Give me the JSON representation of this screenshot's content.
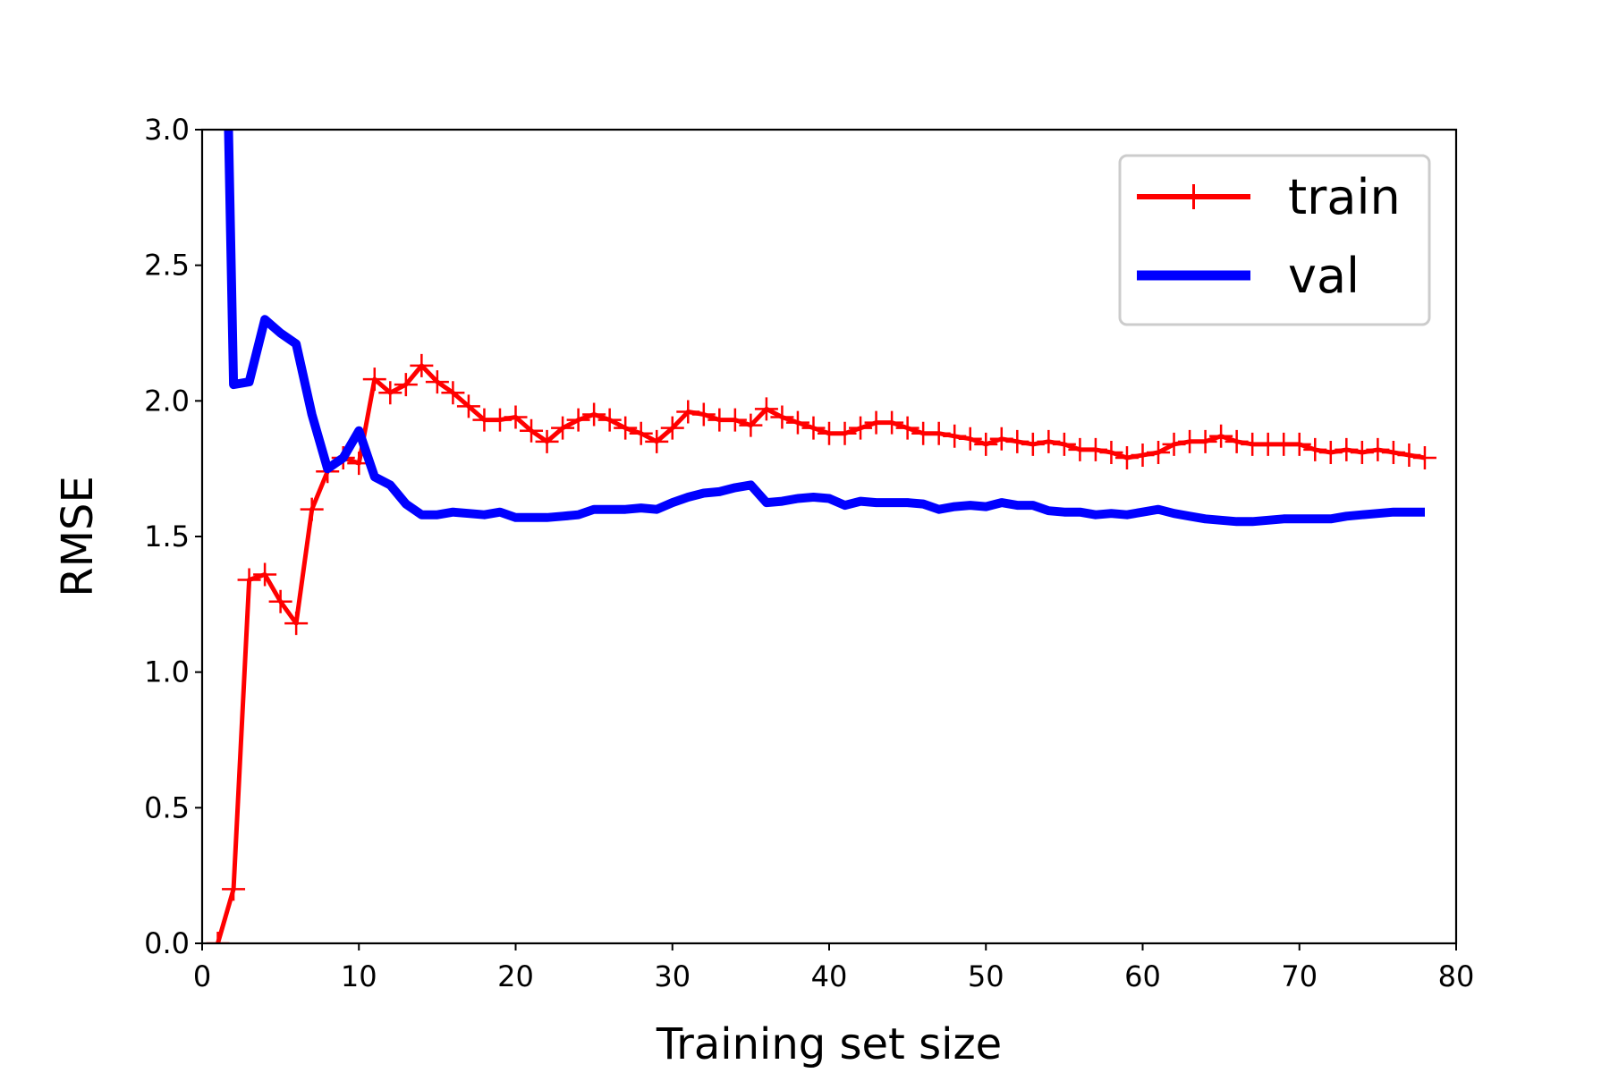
{
  "chart_data": {
    "type": "line",
    "title": "",
    "xlabel": "Training set size",
    "ylabel": "RMSE",
    "xlim": [
      0,
      80
    ],
    "ylim": [
      0,
      3.0
    ],
    "xticks": [
      0,
      10,
      20,
      30,
      40,
      50,
      60,
      70,
      80
    ],
    "yticks": [
      0.0,
      0.5,
      1.0,
      1.5,
      2.0,
      2.5,
      3.0
    ],
    "xtick_labels": [
      "0",
      "10",
      "20",
      "30",
      "40",
      "50",
      "60",
      "70",
      "80"
    ],
    "ytick_labels": [
      "0.0",
      "0.5",
      "1.0",
      "1.5",
      "2.0",
      "2.5",
      "3.0"
    ],
    "grid": false,
    "legend_position": "top-right",
    "x": [
      1,
      2,
      3,
      4,
      5,
      6,
      7,
      8,
      9,
      10,
      11,
      12,
      13,
      14,
      15,
      16,
      17,
      18,
      19,
      20,
      21,
      22,
      23,
      24,
      25,
      26,
      27,
      28,
      29,
      30,
      31,
      32,
      33,
      34,
      35,
      36,
      37,
      38,
      39,
      40,
      41,
      42,
      43,
      44,
      45,
      46,
      47,
      48,
      49,
      50,
      51,
      52,
      53,
      54,
      55,
      56,
      57,
      58,
      59,
      60,
      61,
      62,
      63,
      64,
      65,
      66,
      67,
      68,
      69,
      70,
      71,
      72,
      73,
      74,
      75,
      76,
      77,
      78
    ],
    "series": [
      {
        "name": "train",
        "color": "#ff0000",
        "marker": "+",
        "values": [
          0,
          0.2,
          1.34,
          1.36,
          1.26,
          1.18,
          1.6,
          1.74,
          1.79,
          1.77,
          2.08,
          2.03,
          2.06,
          2.13,
          2.07,
          2.03,
          1.98,
          1.93,
          1.93,
          1.94,
          1.89,
          1.85,
          1.9,
          1.93,
          1.95,
          1.93,
          1.9,
          1.88,
          1.85,
          1.9,
          1.96,
          1.95,
          1.93,
          1.93,
          1.91,
          1.97,
          1.94,
          1.92,
          1.9,
          1.88,
          1.88,
          1.9,
          1.92,
          1.92,
          1.9,
          1.88,
          1.88,
          1.87,
          1.86,
          1.84,
          1.86,
          1.85,
          1.84,
          1.85,
          1.84,
          1.82,
          1.82,
          1.81,
          1.79,
          1.8,
          1.81,
          1.84,
          1.85,
          1.85,
          1.87,
          1.85,
          1.84,
          1.84,
          1.84,
          1.84,
          1.82,
          1.81,
          1.82,
          1.81,
          1.82,
          1.81,
          1.8,
          1.79
        ]
      },
      {
        "name": "val",
        "color": "#0000ff",
        "marker": "",
        "values": [
          5.0,
          2.06,
          2.07,
          2.3,
          2.25,
          2.21,
          1.95,
          1.75,
          1.79,
          1.89,
          1.72,
          1.69,
          1.62,
          1.58,
          1.58,
          1.59,
          1.585,
          1.58,
          1.59,
          1.57,
          1.57,
          1.57,
          1.575,
          1.58,
          1.6,
          1.6,
          1.6,
          1.605,
          1.6,
          1.625,
          1.645,
          1.66,
          1.665,
          1.68,
          1.69,
          1.625,
          1.63,
          1.64,
          1.645,
          1.64,
          1.615,
          1.63,
          1.625,
          1.625,
          1.625,
          1.62,
          1.6,
          1.61,
          1.615,
          1.61,
          1.625,
          1.615,
          1.615,
          1.595,
          1.59,
          1.59,
          1.58,
          1.585,
          1.58,
          1.59,
          1.6,
          1.585,
          1.575,
          1.565,
          1.56,
          1.555,
          1.555,
          1.56,
          1.565,
          1.565,
          1.565,
          1.565,
          1.575,
          1.58,
          1.585,
          1.59,
          1.59,
          1.59
        ]
      }
    ]
  }
}
